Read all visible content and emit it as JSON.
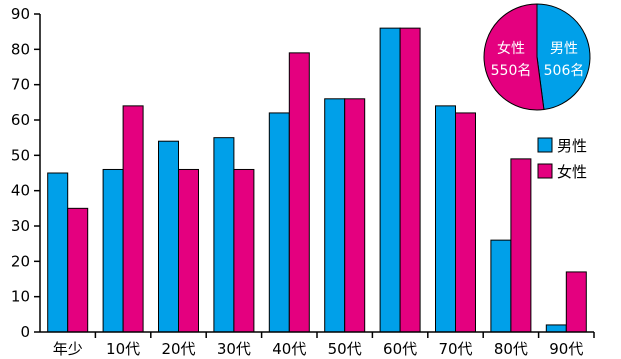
{
  "chart_data": [
    {
      "type": "bar",
      "categories": [
        "年少",
        "10代",
        "20代",
        "30代",
        "40代",
        "50代",
        "60代",
        "70代",
        "80代",
        "90代"
      ],
      "series": [
        {
          "name": "男性",
          "color": "#00a0e9",
          "values": [
            45,
            46,
            54,
            55,
            62,
            66,
            86,
            64,
            26,
            2
          ]
        },
        {
          "name": "女性",
          "color": "#e4007f",
          "values": [
            35,
            64,
            46,
            46,
            79,
            66,
            86,
            62,
            49,
            17
          ]
        }
      ],
      "ylim": [
        0,
        90
      ],
      "yticks": [
        0,
        10,
        20,
        30,
        40,
        50,
        60,
        70,
        80,
        90
      ],
      "legend_position": "right"
    },
    {
      "type": "pie",
      "slices": [
        {
          "name": "男性",
          "count_label": "506名",
          "value": 506,
          "color": "#00a0e9"
        },
        {
          "name": "女性",
          "count_label": "550名",
          "value": 550,
          "color": "#e4007f"
        }
      ]
    }
  ]
}
